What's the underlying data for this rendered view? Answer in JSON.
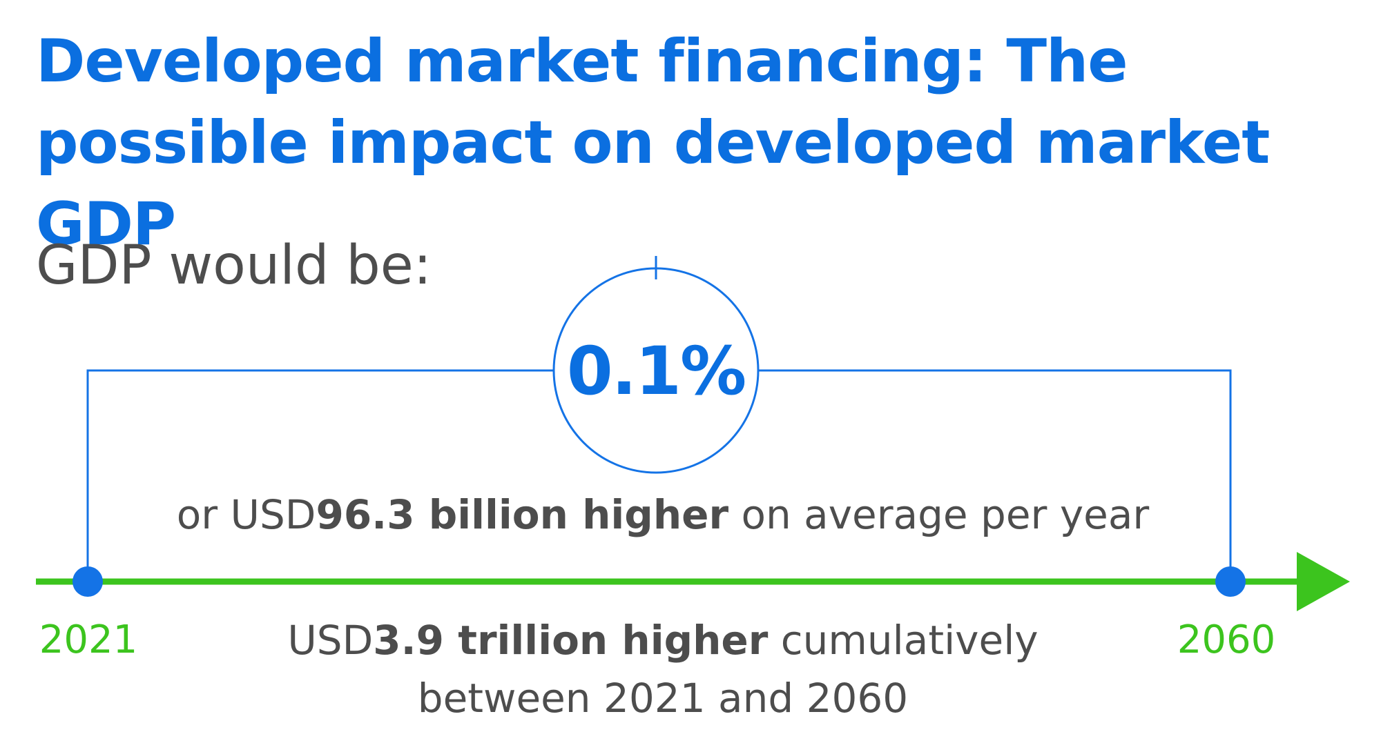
{
  "title": "Developed market financing: The possible impact on developed market GDP",
  "subtitle": "GDP would be:",
  "highlight": {
    "percent": "0.1%"
  },
  "average": {
    "prefix": "or USD",
    "bold": "96.3 billion higher",
    "suffix": " on average per year"
  },
  "cumulative": {
    "prefix": "USD",
    "bold": "3.9 trillion higher",
    "suffix": " cumulatively between 2021 and 2060"
  },
  "timeline": {
    "start_year": "2021",
    "end_year": "2060"
  },
  "colors": {
    "title_blue": "#0b6fe0",
    "text_gray": "#4d4d4d",
    "timeline_green": "#3cc41e",
    "marker_blue": "#1473e6"
  }
}
